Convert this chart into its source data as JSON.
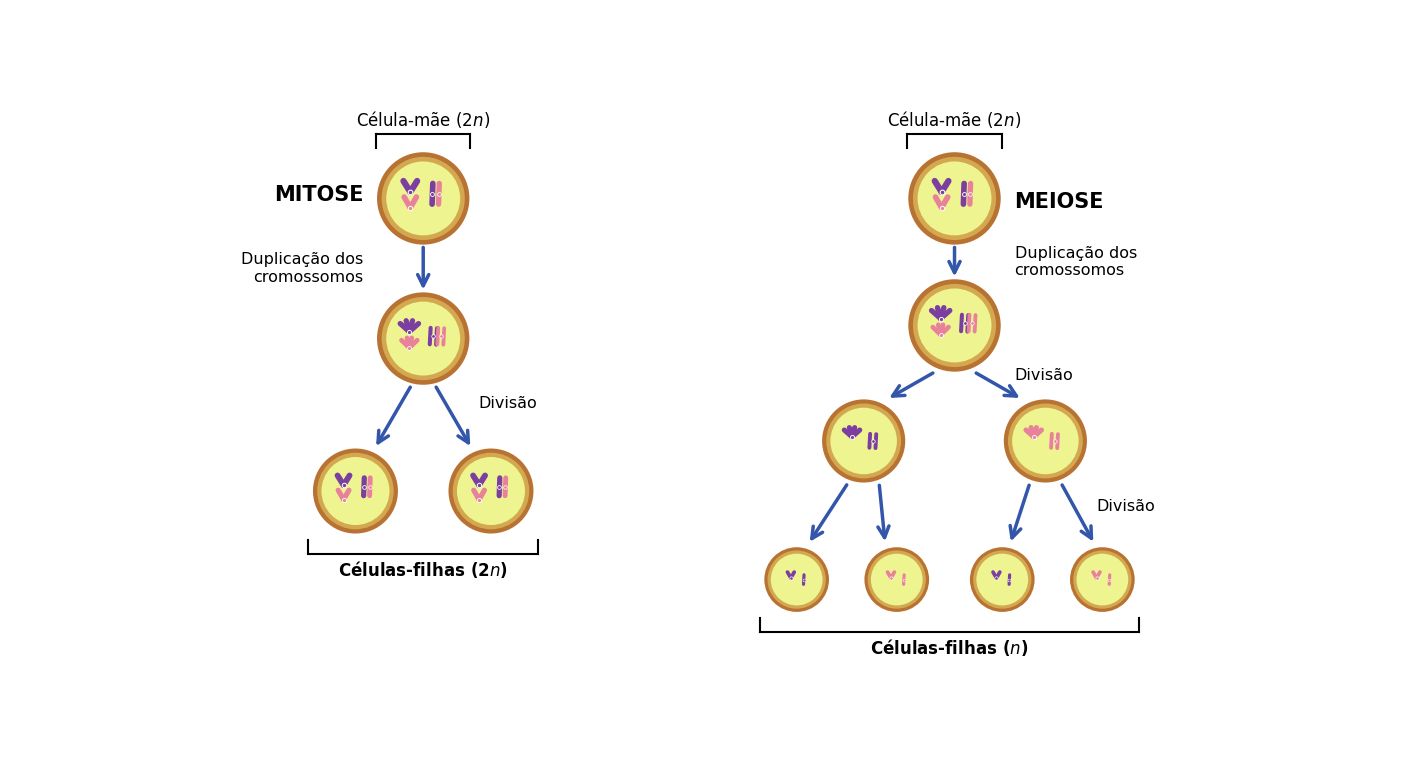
{
  "bg_color": "#ffffff",
  "cell_fill": "#f2f5a0",
  "cell_inner_fill": "#eef590",
  "cell_edge_outer": "#b87333",
  "cell_edge_inner": "#d4a850",
  "arrow_color": "#3355aa",
  "text_color": "#000000",
  "title_mitose": "MITOSE",
  "title_meiose": "MEIOSE",
  "label_mae": "Célula-mãe (2",
  "label_mae_n": "n",
  "label_mae_close": ")",
  "label_filhas_mitose_pre": "Células-filhas (2",
  "label_filhas_mitose_n": "n",
  "label_filhas_mitose_close": ")",
  "label_filhas_meiose_pre": "Células-filhas (",
  "label_filhas_meiose_n": "n",
  "label_filhas_meiose_close": ")",
  "label_dup": "Duplicação dos\ncromossomos",
  "label_div": "Divisão",
  "chrom_purple": "#7b3fa0",
  "chrom_pink": "#e8829a",
  "chrom_darkpurple": "#6a3090",
  "chrom_lightpink": "#f0a8b0"
}
